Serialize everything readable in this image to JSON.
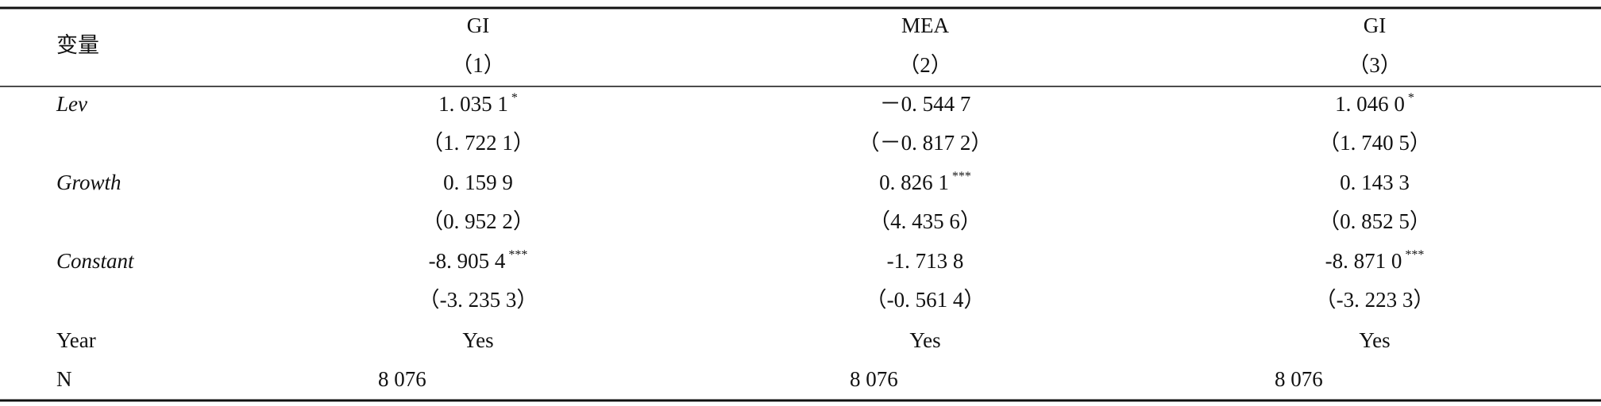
{
  "header": {
    "variable_label": "变量",
    "columns": [
      {
        "name": "GI",
        "number": "（1）"
      },
      {
        "name": "MEA",
        "number": "（2）"
      },
      {
        "name": "GI",
        "number": "（3）"
      }
    ]
  },
  "rows": [
    {
      "label": "Lev",
      "italic": true,
      "cells": [
        {
          "text": "1. 035 1",
          "stars": "*"
        },
        {
          "text": "－0. 544 7"
        },
        {
          "text": "1. 046 0",
          "stars": "*"
        }
      ]
    },
    {
      "cells": [
        {
          "text": "（1. 722 1）"
        },
        {
          "text": "（－0. 817 2）"
        },
        {
          "text": "（1. 740 5）"
        }
      ]
    },
    {
      "label": "Growth",
      "italic": true,
      "cells": [
        {
          "text": "0. 159 9"
        },
        {
          "text": "0. 826 1",
          "stars": "***"
        },
        {
          "text": "0. 143 3"
        }
      ]
    },
    {
      "cells": [
        {
          "text": "（0. 952 2）"
        },
        {
          "text": "（4. 435 6）"
        },
        {
          "text": "（0. 852 5）"
        }
      ]
    },
    {
      "label": "Constant",
      "italic": true,
      "cells": [
        {
          "text": "-8. 905 4",
          "stars": "***"
        },
        {
          "text": "-1. 713 8"
        },
        {
          "text": "-8. 871 0",
          "stars": "***"
        }
      ]
    },
    {
      "cells": [
        {
          "text": "（-3. 235 3）"
        },
        {
          "text": "（-0. 561 4）"
        },
        {
          "text": "（-3. 223 3）"
        }
      ]
    },
    {
      "label": "Year",
      "cells": [
        {
          "text": "Yes"
        },
        {
          "text": "Yes"
        },
        {
          "text": "Yes"
        }
      ]
    },
    {
      "label": "N",
      "cells": [
        {
          "text": "8 076"
        },
        {
          "text": "8 076"
        },
        {
          "text": "8 076"
        }
      ]
    }
  ]
}
